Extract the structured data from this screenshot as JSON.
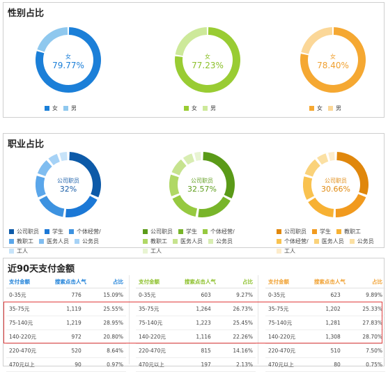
{
  "gender": {
    "title": "性别占比",
    "charts": [
      {
        "center_name": "女",
        "center_pct": "79.77%",
        "value": 79.77,
        "main_color": "#1b7fd8",
        "secondary_color": "#8fc8ee",
        "text_color": "#1b7fd8",
        "legend": [
          {
            "label": "女",
            "color": "#1b7fd8"
          },
          {
            "label": "男",
            "color": "#8fc8ee"
          }
        ]
      },
      {
        "center_name": "女",
        "center_pct": "77.23%",
        "value": 77.23,
        "main_color": "#99cc33",
        "secondary_color": "#cde99a",
        "text_color": "#8cc02a",
        "legend": [
          {
            "label": "女",
            "color": "#99cc33"
          },
          {
            "label": "男",
            "color": "#cde99a"
          }
        ]
      },
      {
        "center_name": "女",
        "center_pct": "78.40%",
        "value": 78.4,
        "main_color": "#f5a832",
        "secondary_color": "#fbd798",
        "text_color": "#f0a030",
        "legend": [
          {
            "label": "女",
            "color": "#f5a832"
          },
          {
            "label": "男",
            "color": "#fbd798"
          }
        ]
      }
    ]
  },
  "occupation": {
    "title": "职业占比",
    "charts": [
      {
        "center_name": "公司职员",
        "center_pct": "32%",
        "text_color": "#1a5ea8",
        "segments": [
          {
            "v": 32,
            "c": "#0d5aa8"
          },
          {
            "v": 20,
            "c": "#1b78d6"
          },
          {
            "v": 16,
            "c": "#3d92e0"
          },
          {
            "v": 12,
            "c": "#5aa6ea"
          },
          {
            "v": 9,
            "c": "#80bdf0"
          },
          {
            "v": 6,
            "c": "#a6d2f6"
          },
          {
            "v": 5,
            "c": "#c7e3f9"
          }
        ],
        "legend": [
          {
            "label": "公司职员",
            "color": "#0d5aa8"
          },
          {
            "label": "学生",
            "color": "#1b78d6"
          },
          {
            "label": "个体经营/",
            "color": "#3d92e0"
          },
          {
            "label": "教职工",
            "color": "#5aa6ea"
          },
          {
            "label": "医务人员",
            "color": "#80bdf0"
          },
          {
            "label": "公务员",
            "color": "#a6d2f6"
          },
          {
            "label": "工人",
            "color": "#c7e3f9"
          }
        ]
      },
      {
        "center_name": "公司职员",
        "center_pct": "32.57%",
        "text_color": "#5f9e1e",
        "segments": [
          {
            "v": 32.57,
            "c": "#5a9a18"
          },
          {
            "v": 20,
            "c": "#78b52a"
          },
          {
            "v": 16,
            "c": "#96c940"
          },
          {
            "v": 12,
            "c": "#b0d865"
          },
          {
            "v": 9,
            "c": "#c6e38e"
          },
          {
            "v": 6,
            "c": "#d8edb2"
          },
          {
            "v": 4.43,
            "c": "#e8f4d2"
          }
        ],
        "legend": [
          {
            "label": "公司职员",
            "color": "#5a9a18"
          },
          {
            "label": "学生",
            "color": "#78b52a"
          },
          {
            "label": "个体经营/",
            "color": "#96c940"
          },
          {
            "label": "教职工",
            "color": "#b0d865"
          },
          {
            "label": "医务人员",
            "color": "#c6e38e"
          },
          {
            "label": "公务员",
            "color": "#d8edb2"
          },
          {
            "label": "工人",
            "color": "#e8f4d2"
          }
        ]
      },
      {
        "center_name": "公司职员",
        "center_pct": "30.66%",
        "text_color": "#e08a10",
        "segments": [
          {
            "v": 30.66,
            "c": "#e0870c"
          },
          {
            "v": 20,
            "c": "#f19a1e"
          },
          {
            "v": 16,
            "c": "#f7b133"
          },
          {
            "v": 13,
            "c": "#f9c24f"
          },
          {
            "v": 10,
            "c": "#fad27a"
          },
          {
            "v": 6,
            "c": "#fbe0a3"
          },
          {
            "v": 4.34,
            "c": "#fdeccb"
          }
        ],
        "legend": [
          {
            "label": "公司职员",
            "color": "#e0870c"
          },
          {
            "label": "学生",
            "color": "#f19a1e"
          },
          {
            "label": "教职工",
            "color": "#f7b133"
          },
          {
            "label": "个体经营/",
            "color": "#f9c24f"
          },
          {
            "label": "医务人员",
            "color": "#fad27a"
          },
          {
            "label": "公务员",
            "color": "#fbe0a3"
          },
          {
            "label": "工人",
            "color": "#fdeccb"
          }
        ]
      }
    ]
  },
  "payment": {
    "title": "近90天支付金额",
    "headers": {
      "amount": "支付金额",
      "popularity": "搜索点击人气",
      "share": "占比"
    },
    "tables": [
      {
        "header_color": "#1b7fd8",
        "rows": [
          [
            "0-35元",
            "776",
            "15.09%"
          ],
          [
            "35-75元",
            "1,119",
            "25.55%"
          ],
          [
            "75-140元",
            "1,219",
            "28.95%"
          ],
          [
            "140-220元",
            "972",
            "20.80%"
          ],
          [
            "220-470元",
            "520",
            "8.64%"
          ],
          [
            "470元以上",
            "90",
            "0.97%"
          ]
        ]
      },
      {
        "header_color": "#8cc02a",
        "rows": [
          [
            "0-35元",
            "603",
            "9.27%"
          ],
          [
            "35-75元",
            "1,264",
            "26.73%"
          ],
          [
            "75-140元",
            "1,223",
            "25.45%"
          ],
          [
            "140-220元",
            "1,116",
            "22.26%"
          ],
          [
            "220-470元",
            "815",
            "14.16%"
          ],
          [
            "470元以上",
            "197",
            "2.13%"
          ]
        ]
      },
      {
        "header_color": "#f0a030",
        "rows": [
          [
            "0-35元",
            "623",
            "9.89%"
          ],
          [
            "35-75元",
            "1,202",
            "25.33%"
          ],
          [
            "75-140元",
            "1,281",
            "27.83%"
          ],
          [
            "140-220元",
            "1,308",
            "28.70%"
          ],
          [
            "220-470元",
            "510",
            "7.50%"
          ],
          [
            "470元以上",
            "80",
            "0.75%"
          ]
        ]
      }
    ]
  }
}
